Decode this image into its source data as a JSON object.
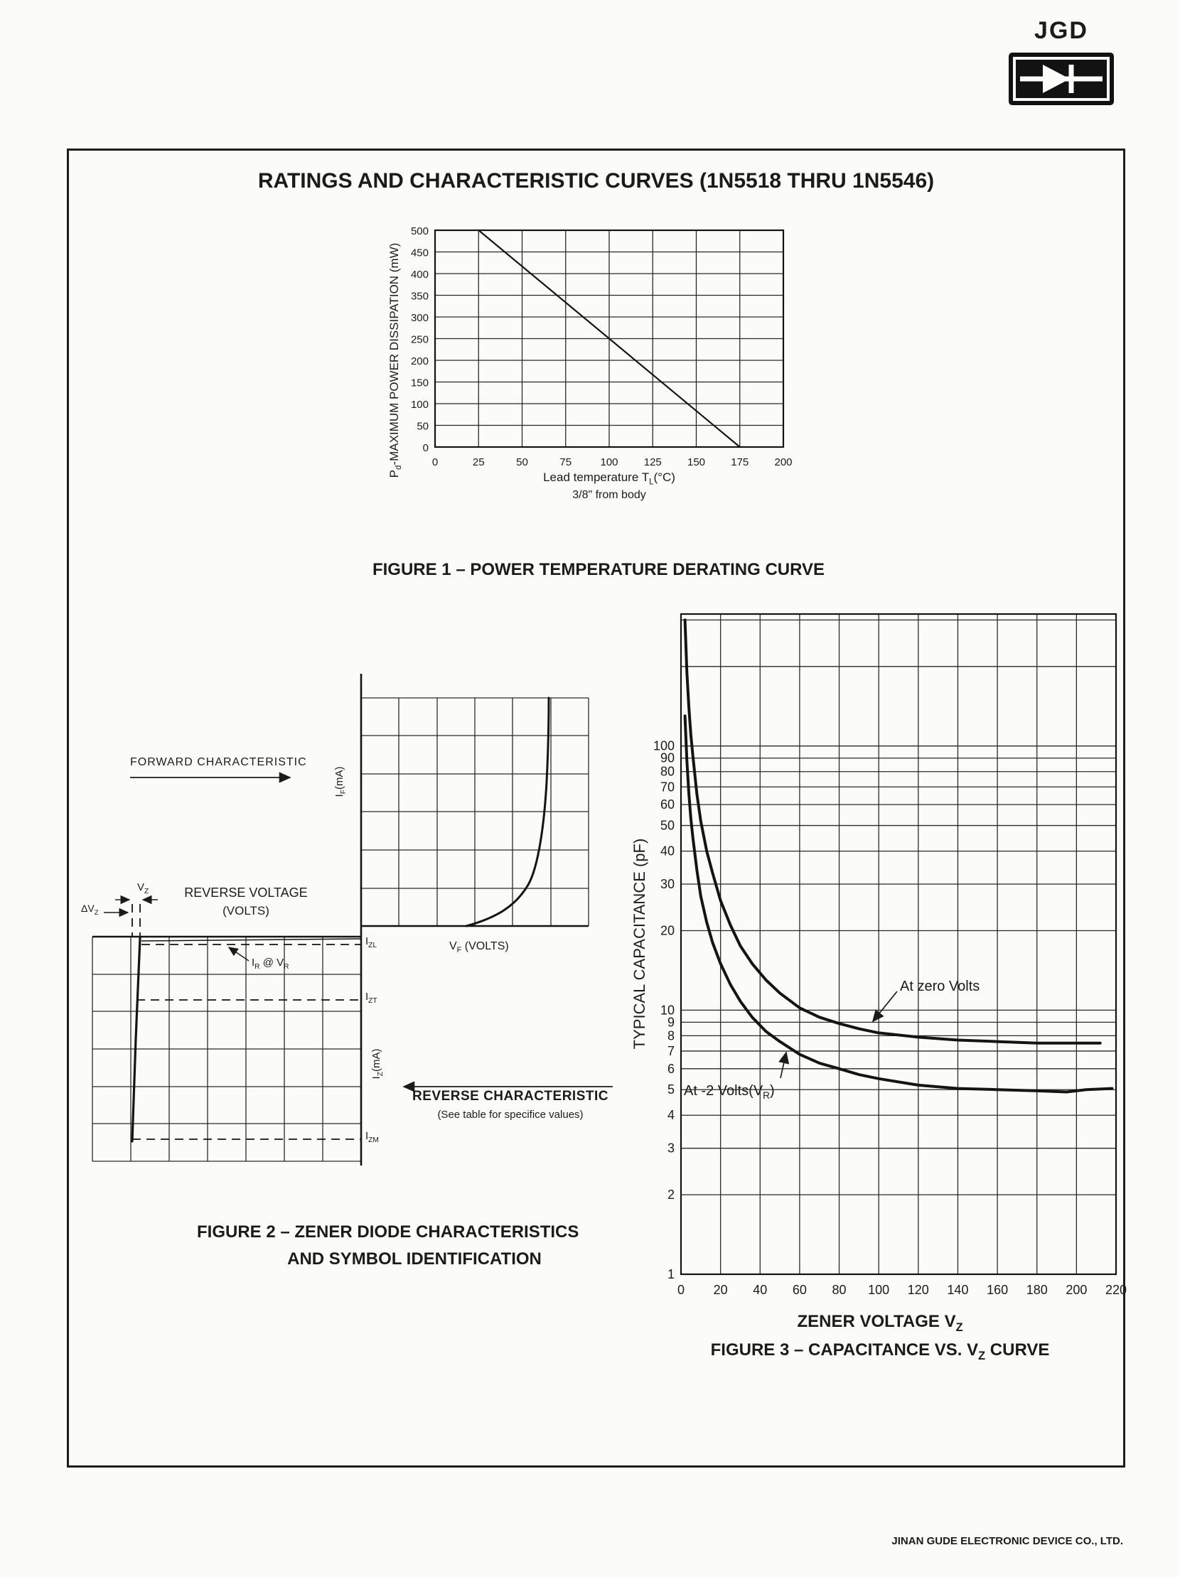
{
  "page": {
    "logo_text": "JGD",
    "logo_icon": "diode-icon",
    "title": "RATINGS AND CHARACTERISTIC CURVES (1N5518 THRU 1N5546)",
    "footer": "JINAN GUDE ELECTRONIC DEVICE CO., LTD."
  },
  "figure1": {
    "ylabel_main": "P",
    "ylabel_sub": "d",
    "ylabel_tail": "-MAXIMUM POWER DISSIPATION (mW)",
    "xlabel_main": "Lead temperature T",
    "xlabel_sub": "L",
    "xlabel_tail": "(°C)",
    "xlabel_line2": "3/8\" from body"
  },
  "figure2": {
    "caption_line1": "FIGURE 2 – ZENER DIODE CHARACTERISTICS",
    "caption_line2": "AND SYMBOL IDENTIFICATION",
    "forward_label": "FORWARD CHARACTERISTIC",
    "reverse_voltage_line1": "REVERSE VOLTAGE",
    "reverse_voltage_line2": "(VOLTS)",
    "reverse_char_line1": "REVERSE CHARACTERISTIC",
    "reverse_char_line2": "(See table for specifice values)",
    "if_main": "I",
    "if_sub": "F",
    "if_tail": "(mA)",
    "iz_main": "I",
    "iz_sub": "Z",
    "iz_tail": "(mA)",
    "vf_main": "V",
    "vf_sub": "F",
    "vf_tail": " (VOLTS)",
    "izl_main": "I",
    "izl_sub": "ZL",
    "izt_main": "I",
    "izt_sub": "ZT",
    "izm_main": "I",
    "izm_sub": "ZM",
    "vz_main": "V",
    "vz_sub": "Z",
    "dvz_main": "ΔV",
    "dvz_sub": "Z",
    "ir_main": "I",
    "ir_sub": "R",
    "ir_mid": " @ V",
    "ir_sub2": "R"
  },
  "figure3": {
    "ylabel": "TYPICAL CAPACITANCE (pF)",
    "xtitle_main": "ZENER VOLTAGE V",
    "xtitle_sub": "Z",
    "caption_main": "FIGURE 3 – CAPACITANCE VS. V",
    "caption_sub": "Z",
    "caption_tail": " CURVE",
    "label_minus2_main": "At -2 Volts(V",
    "label_minus2_sub": "R",
    "label_minus2_tail": ")"
  },
  "chart_data": [
    {
      "id": "figure1",
      "type": "line",
      "title": "FIGURE 1 – POWER TEMPERATURE DERATING CURVE",
      "xlabel": "Lead temperature TL(°C) 3/8\" from body",
      "ylabel": "Pd-MAXIMUM POWER DISSIPATION (mW)",
      "xlim": [
        0,
        200
      ],
      "ylim": [
        0,
        500
      ],
      "yscale": "linear",
      "x_ticks": [
        0,
        25,
        50,
        75,
        100,
        125,
        150,
        175,
        200
      ],
      "y_ticks": [
        0,
        50,
        100,
        150,
        200,
        250,
        300,
        350,
        400,
        450,
        500
      ],
      "grid": true,
      "legend": "none",
      "series": [
        {
          "name": "derating line",
          "points": [
            [
              25,
              500
            ],
            [
              175,
              0
            ]
          ]
        }
      ]
    },
    {
      "id": "figure3",
      "type": "line",
      "title": "FIGURE 3 – CAPACITANCE VS. VZ CURVE",
      "xlabel": "ZENER VOLTAGE VZ",
      "ylabel": "TYPICAL CAPACITANCE (pF)",
      "xlim": [
        0,
        220
      ],
      "ylim": [
        1,
        316
      ],
      "yscale": "log",
      "x_ticks": [
        0,
        20,
        40,
        60,
        80,
        100,
        120,
        140,
        160,
        180,
        200,
        220
      ],
      "y_ticks": [
        100,
        90,
        80,
        70,
        60,
        50,
        40,
        30,
        20,
        10,
        9,
        8,
        7,
        6,
        5,
        4,
        3,
        2,
        1
      ],
      "y_grid": [
        1,
        2,
        3,
        4,
        5,
        6,
        7,
        8,
        9,
        10,
        20,
        30,
        40,
        50,
        60,
        70,
        80,
        90,
        100,
        200,
        300
      ],
      "grid": true,
      "legend": "inline annotations",
      "series": [
        {
          "name": "At zero Volts",
          "points": [
            [
              2,
              300
            ],
            [
              3,
              190
            ],
            [
              4,
              140
            ],
            [
              5,
              110
            ],
            [
              6,
              92
            ],
            [
              8,
              66
            ],
            [
              10,
              52
            ],
            [
              13,
              40
            ],
            [
              16,
              33
            ],
            [
              20,
              26
            ],
            [
              25,
              21
            ],
            [
              30,
              17.5
            ],
            [
              36,
              15
            ],
            [
              43,
              13
            ],
            [
              50,
              11.6
            ],
            [
              60,
              10.2
            ],
            [
              70,
              9.4
            ],
            [
              80,
              8.9
            ],
            [
              90,
              8.5
            ],
            [
              100,
              8.2
            ],
            [
              120,
              7.9
            ],
            [
              140,
              7.7
            ],
            [
              160,
              7.6
            ],
            [
              180,
              7.5
            ],
            [
              200,
              7.5
            ],
            [
              212,
              7.5
            ]
          ]
        },
        {
          "name": "At -2 Volts(VR)",
          "points": [
            [
              2,
              130
            ],
            [
              3,
              88
            ],
            [
              4,
              66
            ],
            [
              5,
              53
            ],
            [
              6,
              45
            ],
            [
              8,
              34
            ],
            [
              10,
              27
            ],
            [
              13,
              21.5
            ],
            [
              16,
              18
            ],
            [
              20,
              15
            ],
            [
              25,
              12.5
            ],
            [
              30,
              10.8
            ],
            [
              36,
              9.4
            ],
            [
              43,
              8.3
            ],
            [
              50,
              7.6
            ],
            [
              60,
              6.8
            ],
            [
              70,
              6.3
            ],
            [
              80,
              6.0
            ],
            [
              90,
              5.7
            ],
            [
              100,
              5.5
            ],
            [
              120,
              5.2
            ],
            [
              140,
              5.05
            ],
            [
              160,
              5.0
            ],
            [
              180,
              4.95
            ],
            [
              195,
              4.9
            ],
            [
              205,
              5.0
            ],
            [
              218,
              5.05
            ]
          ]
        }
      ]
    }
  ]
}
